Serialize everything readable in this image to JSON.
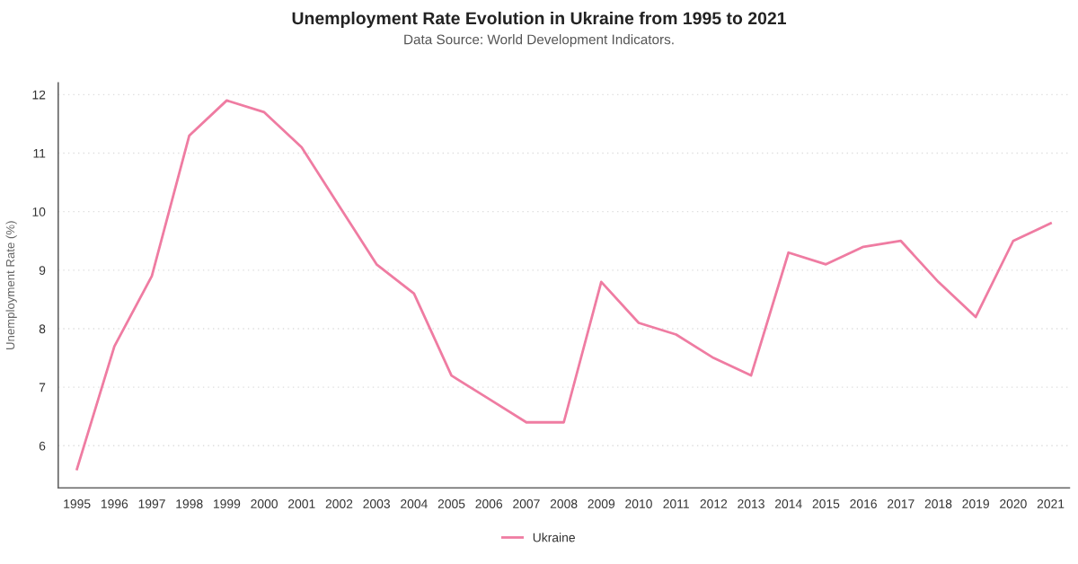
{
  "chart_data": {
    "type": "line",
    "title": "Unemployment Rate Evolution in Ukraine from 1995 to 2021",
    "subtitle": "Data Source: World Development Indicators.",
    "ylabel": "Unemployment Rate (%)",
    "categories": [
      "1995",
      "1996",
      "1997",
      "1998",
      "1999",
      "2000",
      "2001",
      "2002",
      "2003",
      "2004",
      "2005",
      "2006",
      "2007",
      "2008",
      "2009",
      "2010",
      "2011",
      "2012",
      "2013",
      "2014",
      "2015",
      "2016",
      "2017",
      "2018",
      "2019",
      "2020",
      "2021"
    ],
    "series": [
      {
        "name": "Ukraine",
        "color": "#ef7ca2",
        "values": [
          5.6,
          7.7,
          8.9,
          11.3,
          11.9,
          11.7,
          11.1,
          10.1,
          9.1,
          8.6,
          7.2,
          6.8,
          6.4,
          6.4,
          8.8,
          8.1,
          7.9,
          7.5,
          7.2,
          9.3,
          9.1,
          9.4,
          9.5,
          8.8,
          8.2,
          9.5,
          9.8
        ]
      }
    ],
    "ylim": [
      5.28,
      12.2
    ],
    "yticks": [
      6,
      7,
      8,
      9,
      10,
      11,
      12
    ],
    "grid": "y",
    "legend": "bottom",
    "marker": "none",
    "line_style": "solid"
  }
}
